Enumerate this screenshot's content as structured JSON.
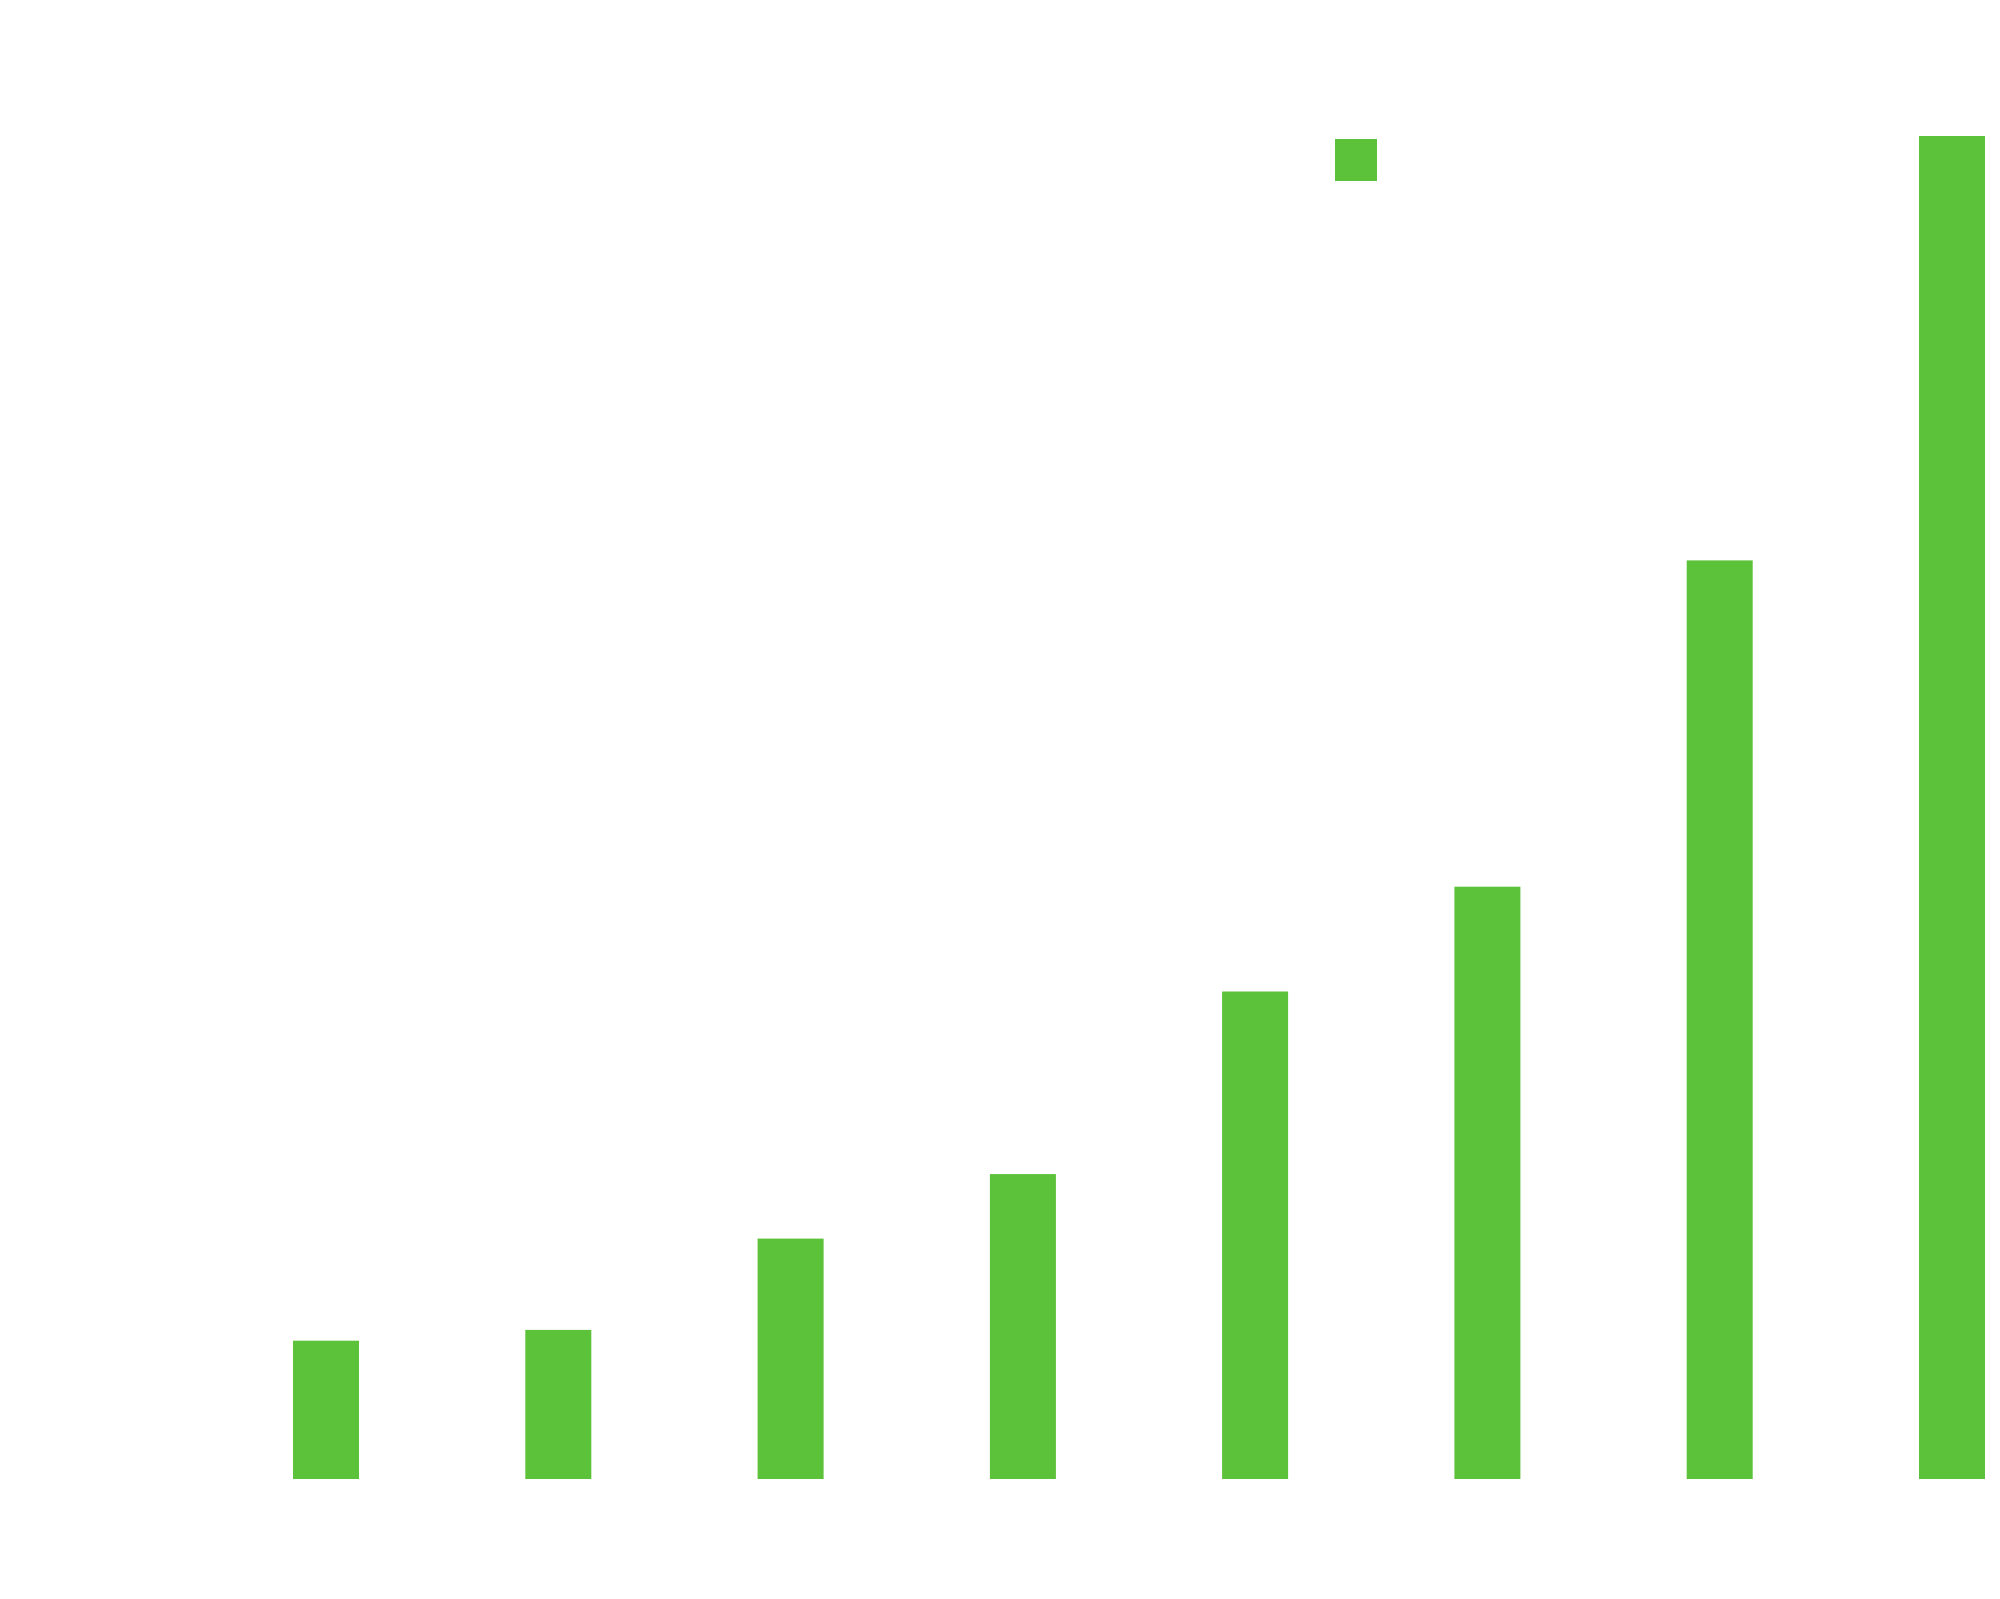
{
  "chart_data": {
    "type": "bar",
    "categories": [
      "",
      "",
      "",
      "",
      "",
      "",
      "",
      ""
    ],
    "series": [
      {
        "values": [
          10.3,
          11.1,
          17.9,
          22.7,
          36.3,
          44.1,
          68.4,
          100
        ]
      }
    ],
    "ylim": [
      0,
      100
    ],
    "grid": false,
    "legend": "top-center",
    "colors": {
      "bar": "#5cc23a",
      "background": "#ffffff"
    }
  }
}
